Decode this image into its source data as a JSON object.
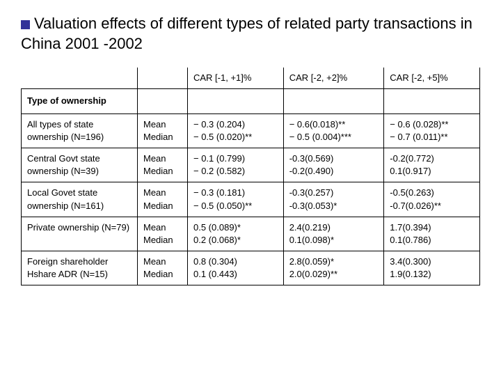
{
  "title": "Valuation effects of different types of related party transactions in China 2001 -2002",
  "columns": {
    "c1": "CAR [-1, +1]%",
    "c2": "CAR [-2, +2]%",
    "c3": "CAR [-2, +5]%"
  },
  "section_label": "Type of ownership",
  "stat_labels": {
    "mean": "Mean",
    "median": "Median"
  },
  "rows": [
    {
      "label": "All types of state ownership (N=196)",
      "mean": [
        "− 0.3 (0.204)",
        "− 0.6(0.018)**",
        "− 0.6 (0.028)**"
      ],
      "median": [
        "− 0.5 (0.020)**",
        "− 0.5 (0.004)***",
        "− 0.7 (0.011)**"
      ]
    },
    {
      "label": "Central Govt state ownership (N=39)",
      "mean": [
        "− 0.1 (0.799)",
        "-0.3(0.569)",
        "-0.2(0.772)"
      ],
      "median": [
        "− 0.2 (0.582)",
        "-0.2(0.490)",
        "0.1(0.917)"
      ]
    },
    {
      "label": "Local Govet state ownership (N=161)",
      "mean": [
        "− 0.3 (0.181)",
        "-0.3(0.257)",
        "-0.5(0.263)"
      ],
      "median": [
        "− 0.5 (0.050)**",
        "-0.3(0.053)*",
        "-0.7(0.026)**"
      ]
    },
    {
      "label": "Private ownership (N=79)",
      "mean": [
        "0.5 (0.089)*",
        "2.4(0.219)",
        "1.7(0.394)"
      ],
      "median": [
        "0.2 (0.068)*",
        "0.1(0.098)*",
        "0.1(0.786)"
      ]
    },
    {
      "label": "Foreign shareholder Hshare ADR (N=15)",
      "mean": [
        "0.8 (0.304)",
        "2.8(0.059)*",
        "3.4(0.300)"
      ],
      "median": [
        "0.1 (0.443)",
        "2.0(0.029)**",
        "1.9(0.132)"
      ]
    }
  ],
  "colors": {
    "accent": "#333399",
    "background": "#ffffff",
    "text": "#000000",
    "border": "#000000"
  },
  "fonts": {
    "title_size": 22,
    "cell_size": 13
  }
}
